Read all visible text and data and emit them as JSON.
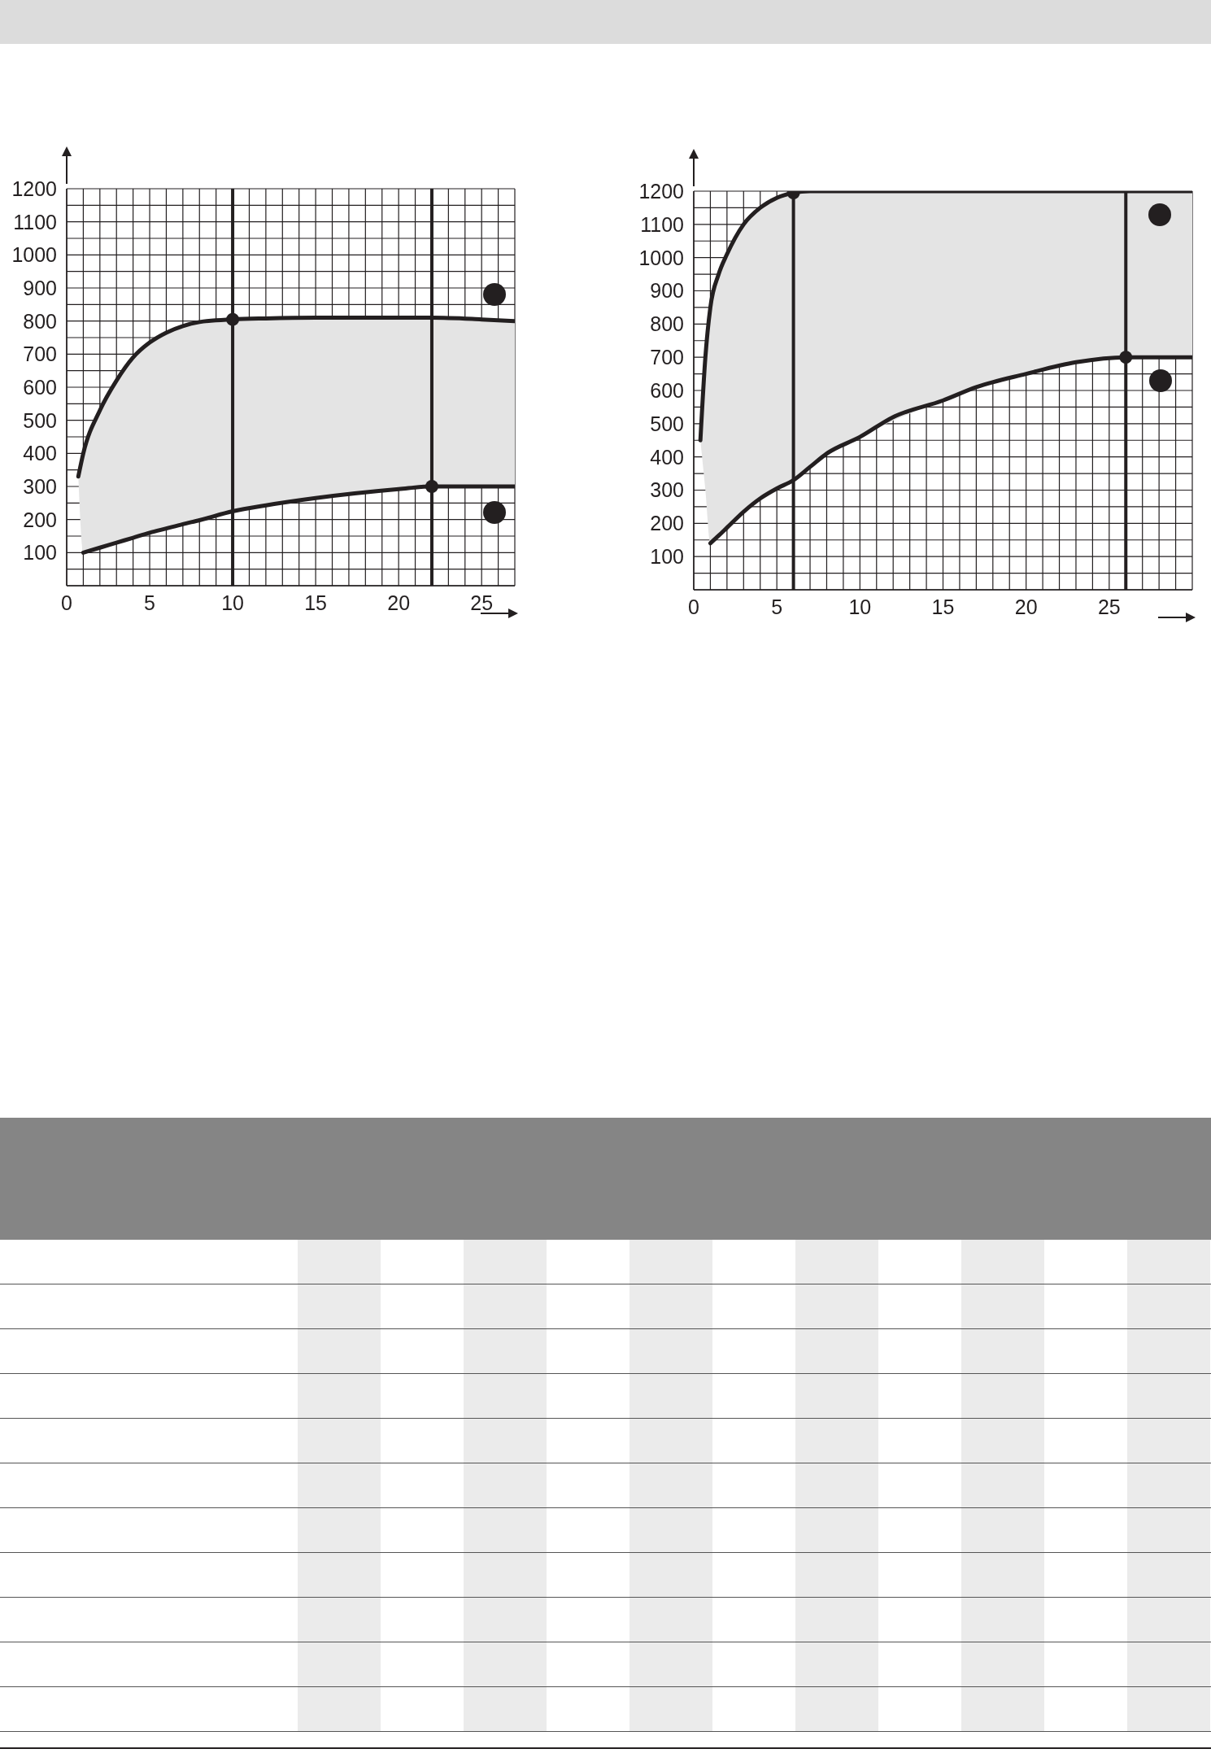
{
  "chart_data": [
    {
      "type": "line",
      "xlim": [
        0,
        27
      ],
      "xticks": [
        0,
        5,
        10,
        15,
        20,
        25
      ],
      "ylim": [
        0,
        1200
      ],
      "yticks": [
        100,
        200,
        300,
        400,
        500,
        600,
        700,
        800,
        900,
        1000,
        1100,
        1200
      ],
      "grid": true,
      "series": [
        {
          "color": "#231f20",
          "x": [
            0.7,
            1,
            2,
            3,
            4,
            5,
            6,
            7,
            8,
            10,
            12,
            15,
            20,
            22,
            25,
            27
          ],
          "values": [
            330,
            400,
            530,
            620,
            690,
            735,
            765,
            785,
            797,
            805,
            808,
            810,
            810,
            810,
            805,
            800
          ],
          "lower": [
            330,
            100,
            115,
            130,
            145,
            160,
            173,
            186,
            198,
            225,
            243,
            265,
            292,
            300,
            300,
            300
          ],
          "upper": [
            330,
            400,
            530,
            620,
            690,
            735,
            765,
            785,
            797,
            805,
            808,
            810,
            810,
            810,
            805,
            800
          ]
        },
        {
          "color": "#231f20",
          "x": [
            1,
            2,
            3,
            4,
            5,
            6,
            7,
            8,
            10,
            12,
            15,
            20,
            22,
            25,
            27
          ],
          "values": [
            100,
            115,
            130,
            145,
            160,
            173,
            186,
            198,
            225,
            243,
            265,
            292,
            300,
            300,
            300
          ]
        },
        {
          "type": "scatter",
          "color": "#231f20",
          "x": [
            10,
            22
          ],
          "values": [
            805,
            300
          ]
        }
      ],
      "ref_lines": [
        {
          "axis": "x",
          "value": 10,
          "color": "#231f20"
        },
        {
          "axis": "x",
          "value": 22,
          "color": "#231f20"
        }
      ]
    },
    {
      "type": "line",
      "xlim": [
        0,
        30
      ],
      "xticks": [
        0,
        5,
        10,
        15,
        20,
        25
      ],
      "ylim": [
        0,
        1200
      ],
      "yticks": [
        100,
        200,
        300,
        400,
        500,
        600,
        700,
        800,
        900,
        1000,
        1100,
        1200
      ],
      "grid": true,
      "series": [
        {
          "color": "#231f20",
          "x": [
            0.4,
            0.7,
            1,
            1.5,
            2,
            3,
            4,
            5,
            6,
            7,
            10,
            15,
            20,
            26,
            30
          ],
          "values": [
            450,
            700,
            850,
            950,
            1010,
            1100,
            1150,
            1180,
            1195,
            1200,
            1200,
            1200,
            1200,
            1200,
            1200
          ],
          "lower": [
            450,
            300,
            140,
            163,
            187,
            235,
            275,
            305,
            330,
            370,
            460,
            570,
            650,
            700,
            700
          ],
          "upper": [
            450,
            700,
            850,
            950,
            1010,
            1100,
            1150,
            1180,
            1195,
            1200,
            1200,
            1200,
            1200,
            1200,
            1200
          ]
        },
        {
          "color": "#231f20",
          "x": [
            1,
            1.5,
            2,
            3,
            4,
            5,
            6,
            7,
            8,
            10,
            12,
            15,
            17,
            20,
            23,
            26,
            30
          ],
          "values": [
            140,
            163,
            187,
            235,
            275,
            305,
            330,
            370,
            410,
            460,
            520,
            570,
            610,
            650,
            685,
            700,
            700
          ]
        },
        {
          "type": "scatter",
          "color": "#231f20",
          "x": [
            6,
            26
          ],
          "values": [
            1195,
            700
          ]
        }
      ],
      "ref_lines": [
        {
          "axis": "x",
          "value": 6,
          "color": "#231f20"
        },
        {
          "axis": "x",
          "value": 26,
          "color": "#231f20"
        }
      ]
    }
  ]
}
